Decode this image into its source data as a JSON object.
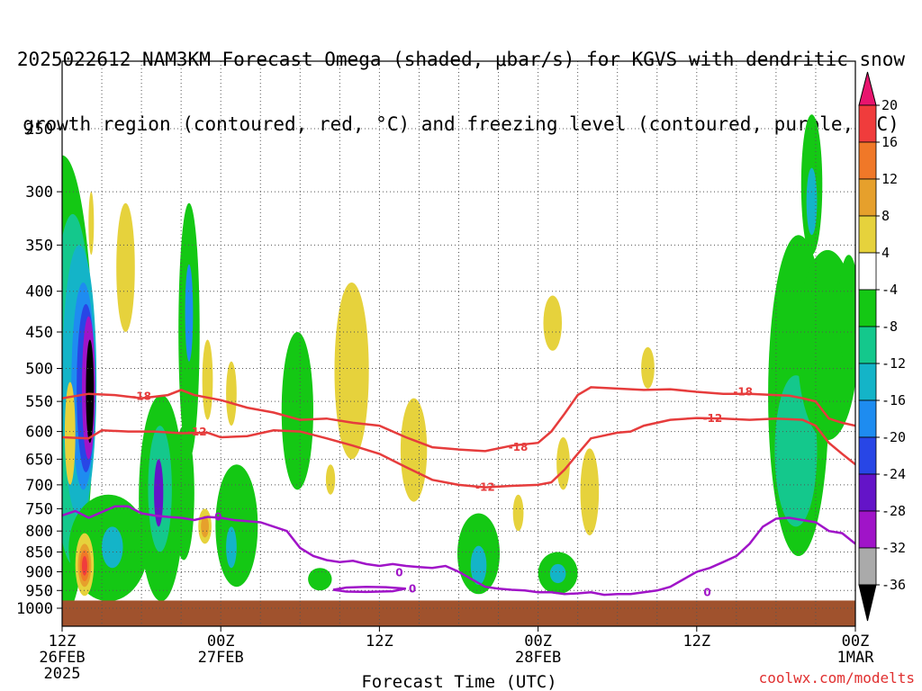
{
  "title": {
    "line1": "2025022612 NAM3KM Forecast Omega (shaded, μbar/s) for KGVS with dendritic snow",
    "line2": "growth region (contoured, red, °C) and freezing level (contoured, purple, °C)"
  },
  "credit": "coolwx.com/modelts",
  "chart_data": {
    "type": "heatmap",
    "xlabel": "Forecast Time (UTC)",
    "x_ticks": [
      {
        "hour": 0,
        "lines": [
          "12Z",
          "26FEB",
          "2025"
        ]
      },
      {
        "hour": 12,
        "lines": [
          "00Z",
          "27FEB"
        ]
      },
      {
        "hour": 24,
        "lines": [
          "12Z"
        ]
      },
      {
        "hour": 36,
        "lines": [
          "00Z",
          "28FEB"
        ]
      },
      {
        "hour": 48,
        "lines": [
          "12Z"
        ]
      },
      {
        "hour": 60,
        "lines": [
          "00Z",
          "1MAR"
        ]
      }
    ],
    "xlim_hours": [
      0,
      60
    ],
    "y_ticks": [
      250,
      300,
      350,
      400,
      450,
      500,
      550,
      600,
      650,
      700,
      750,
      800,
      850,
      900,
      950,
      1000
    ],
    "ylim_hPa": [
      1000,
      200
    ],
    "y_scale": "log",
    "colorbar": {
      "labels": [
        "20",
        "16",
        "12",
        "8",
        "4",
        "-4",
        "-8",
        "-12",
        "-16",
        "-20",
        "-24",
        "-28",
        "-32",
        "-36"
      ],
      "bins": [
        {
          "lo": 20,
          "hi": 24,
          "color": "#e8146e"
        },
        {
          "lo": 16,
          "hi": 20,
          "color": "#f03c3c"
        },
        {
          "lo": 12,
          "hi": 16,
          "color": "#f07828"
        },
        {
          "lo": 8,
          "hi": 12,
          "color": "#e6a02c"
        },
        {
          "lo": 4,
          "hi": 8,
          "color": "#e6d23c"
        },
        {
          "lo": -4,
          "hi": 4,
          "color": "#ffffff"
        },
        {
          "lo": -8,
          "hi": -4,
          "color": "#14c814"
        },
        {
          "lo": -12,
          "hi": -8,
          "color": "#14c88c"
        },
        {
          "lo": -16,
          "hi": -12,
          "color": "#14b4c8"
        },
        {
          "lo": -20,
          "hi": -16,
          "color": "#1e8cf0"
        },
        {
          "lo": -24,
          "hi": -20,
          "color": "#2846e6"
        },
        {
          "lo": -28,
          "hi": -24,
          "color": "#6414c8"
        },
        {
          "lo": -32,
          "hi": -28,
          "color": "#a014c8"
        },
        {
          "lo": -36,
          "hi": -32,
          "color": "#aaaaaa"
        },
        {
          "lo": -40,
          "hi": -36,
          "color": "#000000"
        }
      ]
    },
    "omega_areas": [
      {
        "v": -6,
        "t": 0,
        "p": 650,
        "tr": 2.4,
        "pr": 380
      },
      {
        "v": -10,
        "t": 0.8,
        "p": 600,
        "tr": 1.6,
        "pr": 280
      },
      {
        "v": -14,
        "t": 1.3,
        "p": 560,
        "tr": 1.3,
        "pr": 210
      },
      {
        "v": -18,
        "t": 1.6,
        "p": 550,
        "tr": 0.9,
        "pr": 160
      },
      {
        "v": -22,
        "t": 1.8,
        "p": 545,
        "tr": 0.7,
        "pr": 130
      },
      {
        "v": -30,
        "t": 2.0,
        "p": 540,
        "tr": 0.5,
        "pr": 110
      },
      {
        "v": -40,
        "t": 2.1,
        "p": 540,
        "tr": 0.3,
        "pr": 80
      },
      {
        "v": -6,
        "t": 3.5,
        "p": 850,
        "tr": 3.0,
        "pr": 130
      },
      {
        "v": -14,
        "t": 3.8,
        "p": 840,
        "tr": 0.8,
        "pr": 50
      },
      {
        "v": -6,
        "t": 7.5,
        "p": 760,
        "tr": 1.7,
        "pr": 220
      },
      {
        "v": -12,
        "t": 7.4,
        "p": 720,
        "tr": 0.9,
        "pr": 130
      },
      {
        "v": -26,
        "t": 7.3,
        "p": 720,
        "tr": 0.35,
        "pr": 70
      },
      {
        "v": -6,
        "t": 9.6,
        "p": 480,
        "tr": 0.8,
        "pr": 170
      },
      {
        "v": -18,
        "t": 9.6,
        "p": 430,
        "tr": 0.3,
        "pr": 60
      },
      {
        "v": -6,
        "t": 9.2,
        "p": 730,
        "tr": 0.8,
        "pr": 140
      },
      {
        "v": -6,
        "t": 13.2,
        "p": 800,
        "tr": 1.6,
        "pr": 140
      },
      {
        "v": -14,
        "t": 12.8,
        "p": 840,
        "tr": 0.4,
        "pr": 50
      },
      {
        "v": -6,
        "t": 17.8,
        "p": 580,
        "tr": 1.2,
        "pr": 130
      },
      {
        "v": -6,
        "t": 19.5,
        "p": 920,
        "tr": 0.9,
        "pr": 30
      },
      {
        "v": -6,
        "t": 31.5,
        "p": 860,
        "tr": 1.6,
        "pr": 100
      },
      {
        "v": -14,
        "t": 31.5,
        "p": 885,
        "tr": 0.6,
        "pr": 50
      },
      {
        "v": -6,
        "t": 37.5,
        "p": 905,
        "tr": 1.5,
        "pr": 55
      },
      {
        "v": -14,
        "t": 37.5,
        "p": 905,
        "tr": 0.6,
        "pr": 25
      },
      {
        "v": -6,
        "t": 55.7,
        "p": 600,
        "tr": 2.3,
        "pr": 260
      },
      {
        "v": -10,
        "t": 55.5,
        "p": 650,
        "tr": 1.6,
        "pr": 140
      },
      {
        "v": -6,
        "t": 57.9,
        "p": 485,
        "tr": 2.3,
        "pr": 130
      },
      {
        "v": -6,
        "t": 56.7,
        "p": 300,
        "tr": 0.8,
        "pr": 60
      },
      {
        "v": -14,
        "t": 56.7,
        "p": 310,
        "tr": 0.4,
        "pr": 30
      },
      {
        "v": -6,
        "t": 59.5,
        "p": 430,
        "tr": 0.8,
        "pr": 70
      },
      {
        "v": 6,
        "t": 0.6,
        "p": 610,
        "tr": 0.4,
        "pr": 90
      },
      {
        "v": 6,
        "t": 1.7,
        "p": 885,
        "tr": 0.7,
        "pr": 80
      },
      {
        "v": 10,
        "t": 1.7,
        "p": 885,
        "tr": 0.5,
        "pr": 55
      },
      {
        "v": 14,
        "t": 1.7,
        "p": 885,
        "tr": 0.35,
        "pr": 40
      },
      {
        "v": 18,
        "t": 1.7,
        "p": 885,
        "tr": 0.2,
        "pr": 25
      },
      {
        "v": 6,
        "t": 4.8,
        "p": 380,
        "tr": 0.7,
        "pr": 70
      },
      {
        "v": 6,
        "t": 2.2,
        "p": 330,
        "tr": 0.2,
        "pr": 30
      },
      {
        "v": 6,
        "t": 11.0,
        "p": 520,
        "tr": 0.4,
        "pr": 60
      },
      {
        "v": 6,
        "t": 10.8,
        "p": 790,
        "tr": 0.5,
        "pr": 40
      },
      {
        "v": 10,
        "t": 10.8,
        "p": 790,
        "tr": 0.3,
        "pr": 25
      },
      {
        "v": 6,
        "t": 12.8,
        "p": 540,
        "tr": 0.4,
        "pr": 50
      },
      {
        "v": 6,
        "t": 21.9,
        "p": 520,
        "tr": 1.3,
        "pr": 130
      },
      {
        "v": 6,
        "t": 26.6,
        "p": 640,
        "tr": 1.0,
        "pr": 95
      },
      {
        "v": 6,
        "t": 20.3,
        "p": 690,
        "tr": 0.35,
        "pr": 30
      },
      {
        "v": 6,
        "t": 37.1,
        "p": 440,
        "tr": 0.7,
        "pr": 35
      },
      {
        "v": 6,
        "t": 39.9,
        "p": 720,
        "tr": 0.7,
        "pr": 90
      },
      {
        "v": 6,
        "t": 37.9,
        "p": 660,
        "tr": 0.5,
        "pr": 50
      },
      {
        "v": 6,
        "t": 34.5,
        "p": 760,
        "tr": 0.4,
        "pr": 40
      },
      {
        "v": 6,
        "t": 44.3,
        "p": 500,
        "tr": 0.5,
        "pr": 30
      }
    ],
    "contours": [
      {
        "label": "-18",
        "color": "#e63c3c",
        "points": [
          [
            0,
            545
          ],
          [
            2,
            538
          ],
          [
            4,
            540
          ],
          [
            6,
            545
          ],
          [
            8,
            540
          ],
          [
            9,
            532
          ],
          [
            10,
            540
          ],
          [
            12,
            548
          ],
          [
            14,
            560
          ],
          [
            16,
            568
          ],
          [
            18,
            580
          ],
          [
            20,
            578
          ],
          [
            22,
            585
          ],
          [
            24,
            590
          ],
          [
            26,
            610
          ],
          [
            28,
            628
          ],
          [
            30,
            632
          ],
          [
            32,
            635
          ],
          [
            34,
            625
          ],
          [
            36,
            620
          ],
          [
            37,
            600
          ],
          [
            38,
            570
          ],
          [
            39,
            540
          ],
          [
            40,
            528
          ],
          [
            42,
            530
          ],
          [
            44,
            532
          ],
          [
            46,
            531
          ],
          [
            48,
            535
          ],
          [
            50,
            538
          ],
          [
            52,
            538
          ],
          [
            54,
            540
          ],
          [
            55,
            541
          ],
          [
            56,
            545
          ],
          [
            57,
            550
          ],
          [
            58,
            578
          ],
          [
            59,
            585
          ],
          [
            60,
            590
          ]
        ],
        "label_hour": 6.0,
        "label_hPa": 542
      },
      {
        "label": "-18",
        "color": "#e63c3c",
        "points": [],
        "label_hour": 34.5,
        "label_hPa": 628
      },
      {
        "label": "-18",
        "color": "#e63c3c",
        "points": [],
        "label_hour": 51.5,
        "label_hPa": 535
      },
      {
        "label": "-12",
        "color": "#e63c3c",
        "points": [
          [
            0,
            610
          ],
          [
            2,
            612
          ],
          [
            3,
            598
          ],
          [
            5,
            600
          ],
          [
            7,
            600
          ],
          [
            9,
            603
          ],
          [
            11,
            602
          ],
          [
            12,
            610
          ],
          [
            14,
            608
          ],
          [
            16,
            598
          ],
          [
            18,
            600
          ],
          [
            20,
            612
          ],
          [
            22,
            625
          ],
          [
            24,
            640
          ],
          [
            26,
            665
          ],
          [
            28,
            690
          ],
          [
            30,
            700
          ],
          [
            32,
            705
          ],
          [
            34,
            702
          ],
          [
            36,
            700
          ],
          [
            37,
            695
          ],
          [
            38,
            670
          ],
          [
            39,
            640
          ],
          [
            40,
            612
          ],
          [
            42,
            602
          ],
          [
            43,
            600
          ],
          [
            44,
            590
          ],
          [
            46,
            580
          ],
          [
            48,
            577
          ],
          [
            50,
            578
          ],
          [
            52,
            580
          ],
          [
            54,
            578
          ],
          [
            56,
            580
          ],
          [
            57,
            590
          ],
          [
            58,
            620
          ],
          [
            59,
            640
          ],
          [
            60,
            660
          ]
        ],
        "label_hour": 10.2,
        "label_hPa": 601
      },
      {
        "label": "-12",
        "color": "#e63c3c",
        "points": [],
        "label_hour": 32.0,
        "label_hPa": 705
      },
      {
        "label": "-12",
        "color": "#e63c3c",
        "points": [],
        "label_hour": 49.2,
        "label_hPa": 578
      },
      {
        "label": "0",
        "color": "#a014c8",
        "points": [
          [
            0,
            765
          ],
          [
            1,
            755
          ],
          [
            2,
            770
          ],
          [
            4,
            745
          ],
          [
            5,
            745
          ],
          [
            6,
            760
          ],
          [
            7,
            765
          ],
          [
            8,
            768
          ],
          [
            9,
            770
          ],
          [
            10,
            775
          ],
          [
            11,
            768
          ],
          [
            12,
            770
          ],
          [
            13,
            775
          ],
          [
            15,
            780
          ],
          [
            17,
            800
          ],
          [
            18,
            840
          ],
          [
            19,
            860
          ],
          [
            20,
            870
          ],
          [
            21,
            875
          ],
          [
            22,
            872
          ],
          [
            23,
            880
          ],
          [
            24,
            885
          ],
          [
            25,
            880
          ],
          [
            26,
            885
          ],
          [
            27,
            888
          ],
          [
            28,
            890
          ],
          [
            29,
            885
          ],
          [
            30,
            900
          ],
          [
            31,
            920
          ],
          [
            32,
            940
          ],
          [
            33,
            945
          ],
          [
            34,
            948
          ],
          [
            35,
            950
          ],
          [
            36,
            955
          ],
          [
            37,
            955
          ],
          [
            38,
            960
          ],
          [
            39,
            958
          ],
          [
            40,
            955
          ],
          [
            41,
            962
          ],
          [
            42,
            960
          ],
          [
            43,
            960
          ],
          [
            44,
            955
          ],
          [
            45,
            950
          ],
          [
            46,
            940
          ],
          [
            47,
            920
          ],
          [
            48,
            900
          ],
          [
            49,
            890
          ],
          [
            50,
            875
          ],
          [
            51,
            860
          ],
          [
            52,
            830
          ],
          [
            53,
            790
          ],
          [
            54,
            772
          ],
          [
            55,
            770
          ],
          [
            56,
            775
          ],
          [
            57,
            780
          ],
          [
            58,
            800
          ],
          [
            59,
            805
          ],
          [
            60,
            830
          ]
        ],
        "label_hour": 11.8,
        "label_hPa": 768
      },
      {
        "label": "0",
        "color": "#a014c8",
        "points": [
          [
            20.5,
            948
          ],
          [
            21.5,
            942
          ],
          [
            23,
            940
          ],
          [
            24.5,
            941
          ],
          [
            26,
            945
          ],
          [
            25,
            952
          ],
          [
            23,
            954
          ],
          [
            21.5,
            953
          ],
          [
            20.5,
            948
          ]
        ],
        "label_hour": 26.5,
        "label_hPa": 946
      },
      {
        "label": "0",
        "color": "#a014c8",
        "points": [],
        "label_hour": 25.5,
        "label_hPa": 902
      },
      {
        "label": "0",
        "color": "#a014c8",
        "points": [],
        "label_hour": 48.8,
        "label_hPa": 955
      }
    ],
    "ground": {
      "top_hPa": 978,
      "color": "#a0522d"
    }
  }
}
